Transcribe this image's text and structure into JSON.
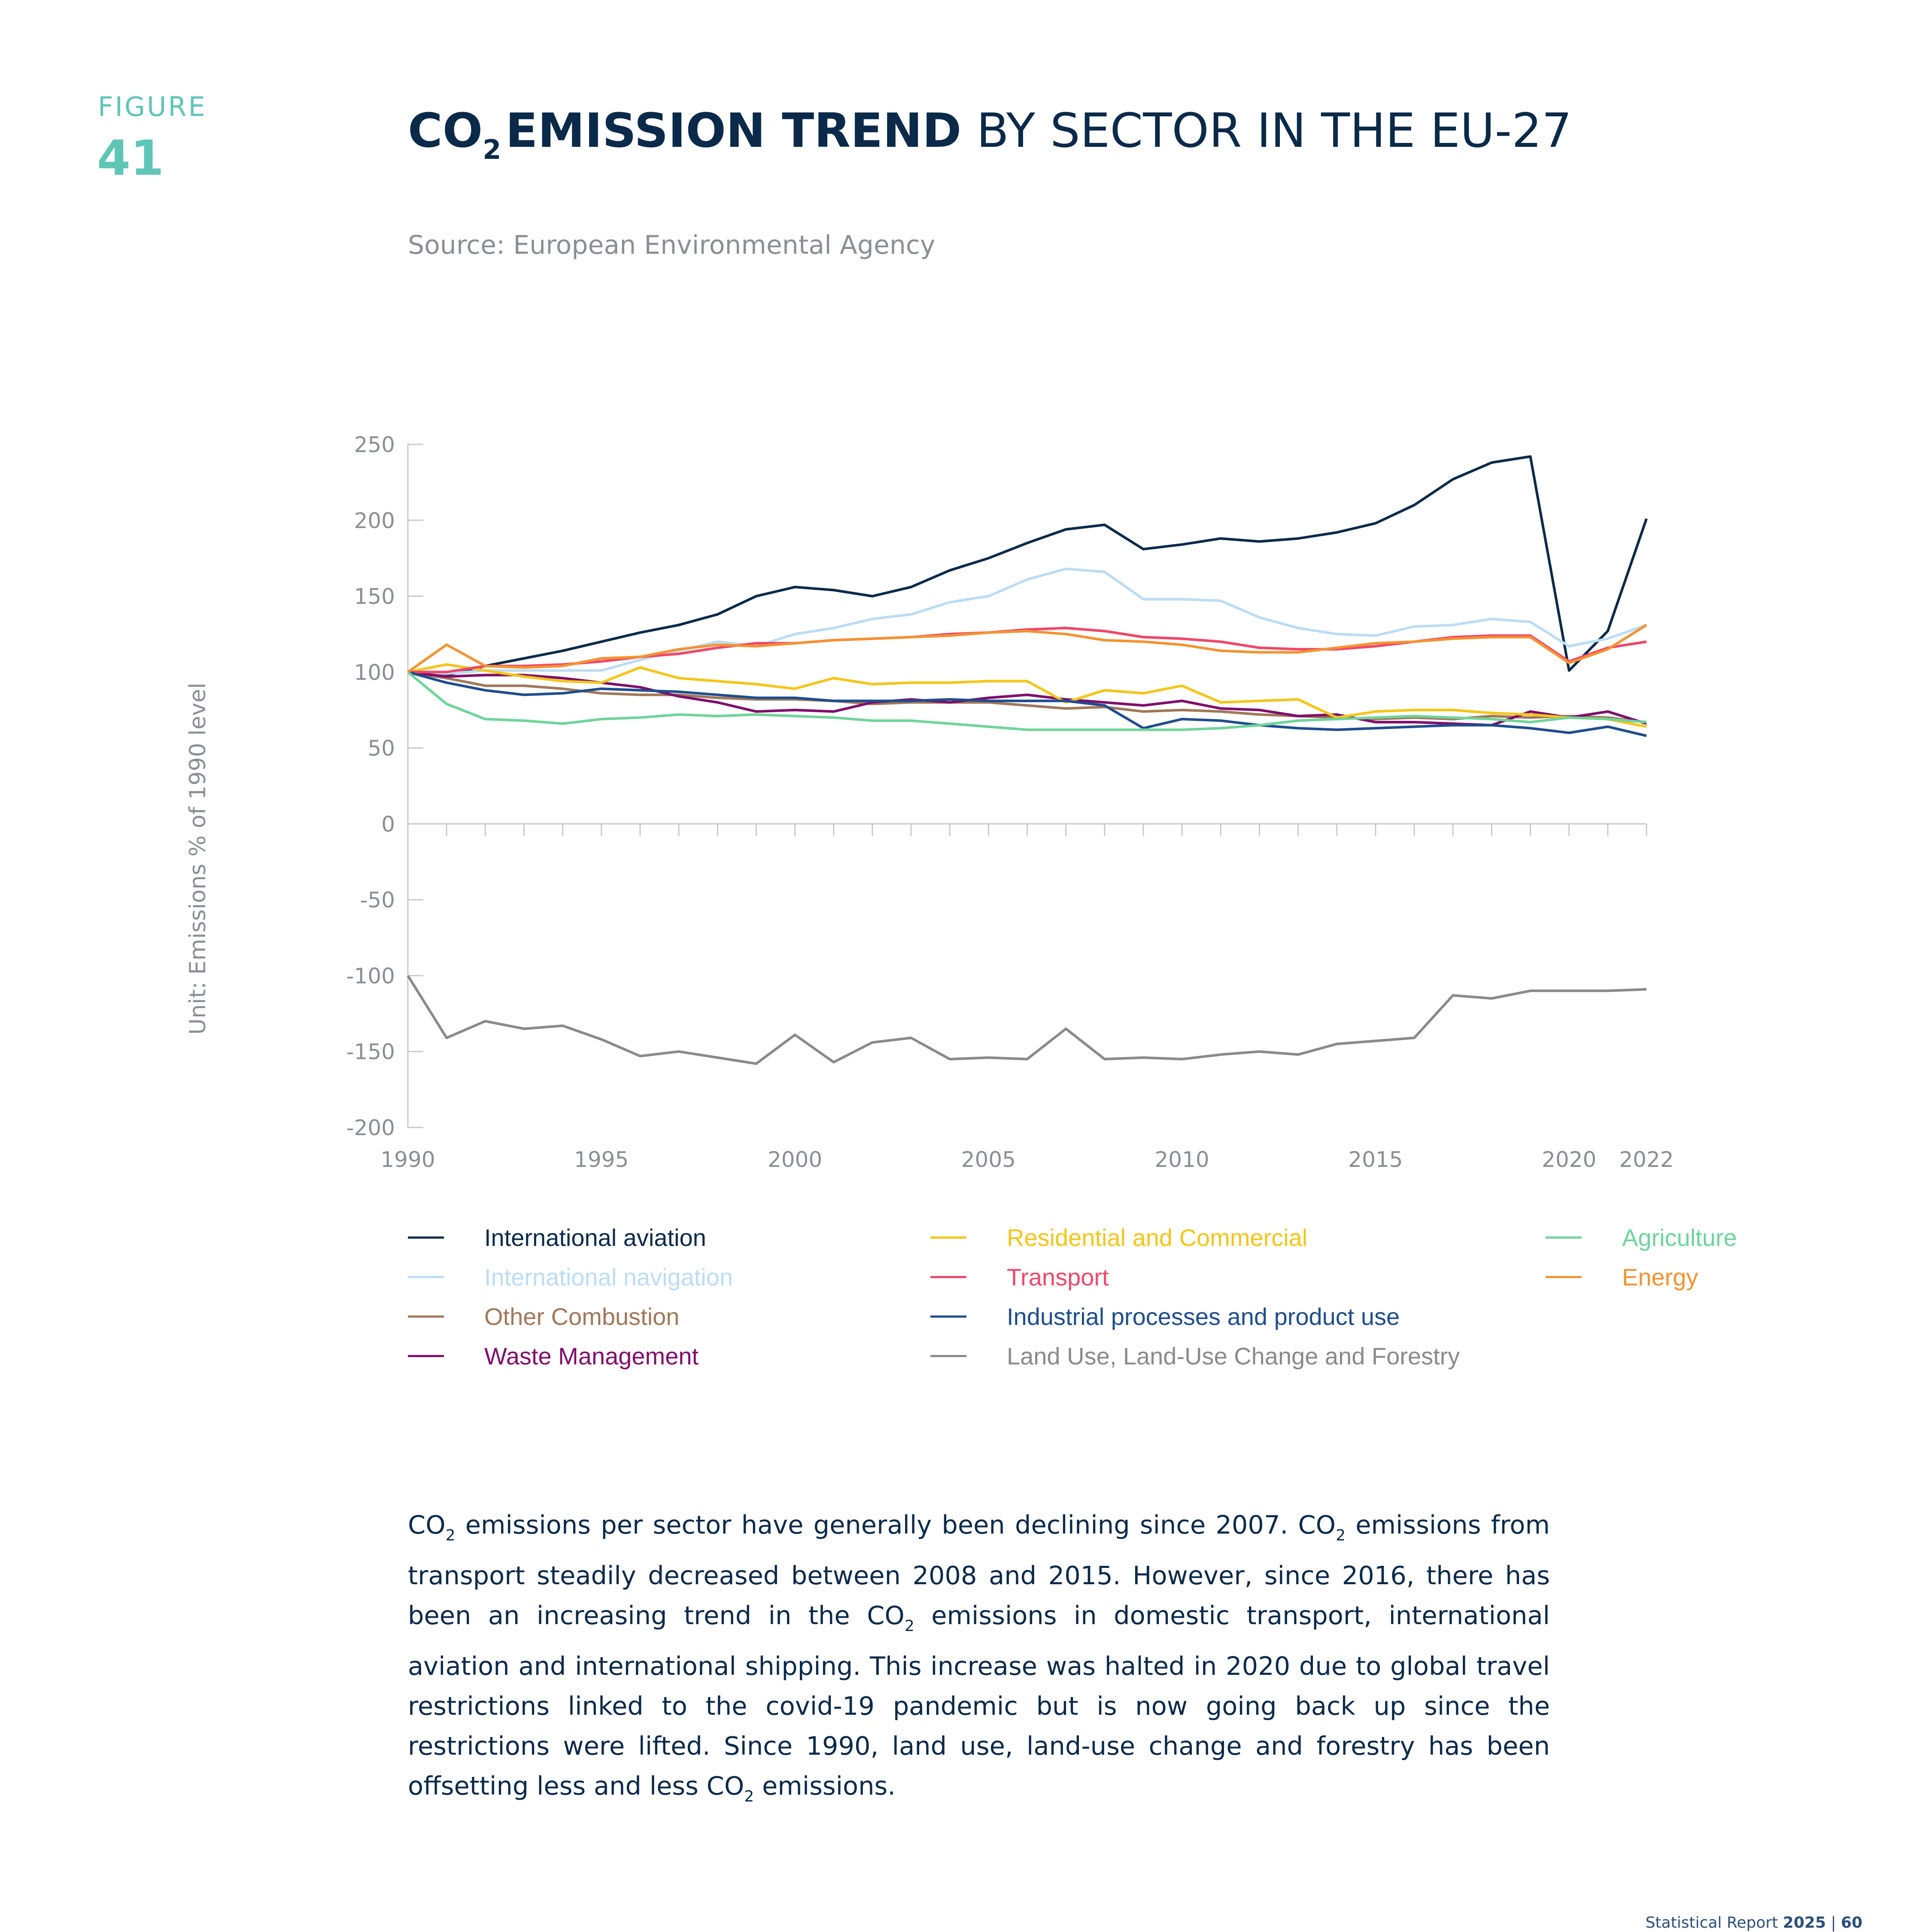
{
  "figure": {
    "label": "FIGURE",
    "number": "41"
  },
  "title": {
    "co": "CO",
    "sub": "2",
    "bold_rest": "EMISSION TREND",
    "regular": " BY SECTOR IN THE EU-27"
  },
  "source": "Source: European Environmental Agency",
  "chart_data": {
    "type": "line",
    "ylabel": "Unit: Emissions % of 1990 level",
    "xlabel": "",
    "ylim": [
      -200,
      250
    ],
    "yticks": [
      250,
      200,
      150,
      100,
      50,
      0,
      -50,
      -100,
      -150,
      -200
    ],
    "xticks": [
      1990,
      1995,
      2000,
      2005,
      2010,
      2015,
      2020,
      2022
    ],
    "x": [
      1990,
      1991,
      1992,
      1993,
      1994,
      1995,
      1996,
      1997,
      1998,
      1999,
      2000,
      2001,
      2002,
      2003,
      2004,
      2005,
      2006,
      2007,
      2008,
      2009,
      2010,
      2011,
      2012,
      2013,
      2014,
      2015,
      2016,
      2017,
      2018,
      2019,
      2020,
      2021,
      2022
    ],
    "legend_position": "bottom",
    "series": [
      {
        "name": "International aviation",
        "color": "#0b2a4a",
        "values": [
          100,
          98,
          104,
          109,
          114,
          120,
          126,
          131,
          138,
          150,
          156,
          154,
          150,
          156,
          167,
          175,
          185,
          194,
          197,
          181,
          184,
          188,
          186,
          188,
          192,
          198,
          210,
          227,
          238,
          242,
          101,
          127,
          201
        ]
      },
      {
        "name": "International navigation",
        "color": "#bcdcf4",
        "values": [
          100,
          99,
          101,
          101,
          101,
          101,
          108,
          114,
          120,
          117,
          125,
          129,
          135,
          138,
          146,
          150,
          161,
          168,
          166,
          148,
          148,
          147,
          136,
          129,
          125,
          124,
          130,
          131,
          135,
          133,
          117,
          122,
          131
        ]
      },
      {
        "name": "Other Combustion",
        "color": "#a0785a",
        "values": [
          100,
          96,
          91,
          91,
          89,
          86,
          85,
          85,
          83,
          82,
          82,
          81,
          79,
          80,
          80,
          80,
          78,
          76,
          77,
          74,
          75,
          74,
          72,
          71,
          70,
          69,
          70,
          69,
          71,
          70,
          71,
          70,
          67
        ]
      },
      {
        "name": "Waste Management",
        "color": "#800e6c",
        "values": [
          100,
          97,
          98,
          98,
          96,
          93,
          90,
          84,
          80,
          74,
          75,
          74,
          80,
          82,
          80,
          83,
          85,
          82,
          80,
          78,
          81,
          76,
          75,
          71,
          72,
          67,
          67,
          66,
          65,
          74,
          70,
          74,
          66
        ]
      },
      {
        "name": "Residential and Commercial",
        "color": "#f5c518",
        "values": [
          100,
          105,
          101,
          97,
          94,
          93,
          103,
          96,
          94,
          92,
          89,
          96,
          92,
          93,
          93,
          94,
          94,
          80,
          88,
          86,
          91,
          80,
          81,
          82,
          70,
          74,
          75,
          75,
          73,
          72,
          70,
          69,
          64
        ]
      },
      {
        "name": "Transport",
        "color": "#f0476a",
        "values": [
          100,
          100,
          104,
          104,
          105,
          107,
          110,
          112,
          116,
          119,
          119,
          121,
          122,
          123,
          125,
          126,
          128,
          129,
          127,
          123,
          122,
          120,
          116,
          115,
          115,
          117,
          120,
          123,
          124,
          124,
          107,
          116,
          120
        ]
      },
      {
        "name": "Industrial processes and product use",
        "color": "#1f4d8f",
        "values": [
          100,
          93,
          88,
          85,
          86,
          89,
          88,
          87,
          85,
          83,
          83,
          81,
          81,
          81,
          82,
          81,
          81,
          81,
          78,
          63,
          69,
          68,
          65,
          63,
          62,
          63,
          64,
          65,
          65,
          63,
          60,
          64,
          58
        ]
      },
      {
        "name": "Land Use, Land-Use Change and Forestry",
        "color": "#8a8a8a",
        "values": [
          -100,
          -141,
          -130,
          -135,
          -133,
          -142,
          -153,
          -150,
          -154,
          -158,
          -139,
          -157,
          -144,
          -141,
          -155,
          -154,
          -155,
          -135,
          -155,
          -154,
          -155,
          -152,
          -150,
          -152,
          -145,
          -143,
          -141,
          -113,
          -115,
          -110,
          -110,
          -110,
          -109
        ]
      },
      {
        "name": "Agriculture",
        "color": "#6fd49a",
        "values": [
          100,
          79,
          69,
          68,
          66,
          69,
          70,
          72,
          71,
          72,
          71,
          70,
          68,
          68,
          66,
          64,
          62,
          62,
          62,
          62,
          62,
          63,
          65,
          68,
          69,
          70,
          71,
          70,
          69,
          67,
          70,
          69,
          67
        ]
      },
      {
        "name": "Energy",
        "color": "#f39331",
        "values": [
          100,
          118,
          104,
          103,
          104,
          109,
          110,
          115,
          118,
          117,
          119,
          121,
          122,
          123,
          124,
          126,
          127,
          125,
          121,
          120,
          118,
          114,
          113,
          113,
          116,
          119,
          120,
          122,
          123,
          123,
          106,
          115,
          131
        ]
      }
    ]
  },
  "description": {
    "co": "CO",
    "sub": "2",
    "part1": " emissions per sector have generally been declining since 2007. ",
    "part2": " emissions from transport steadily decreased between 2008 and 2015. However, since 2016, there has been an increasing trend in the ",
    "part3": " emissions in domestic transport, international aviation and international shipping. This increase was halted in 2020 due to global travel restrictions linked to the covid-19 pandemic but is now going back up since the restrictions were lifted. Since 1990, land use, land-use change and forestry has been offsetting less and less ",
    "part4": " emissions."
  },
  "footer": {
    "text": "Statistical Report ",
    "year": "2025",
    "sep": " | ",
    "page": "60"
  }
}
